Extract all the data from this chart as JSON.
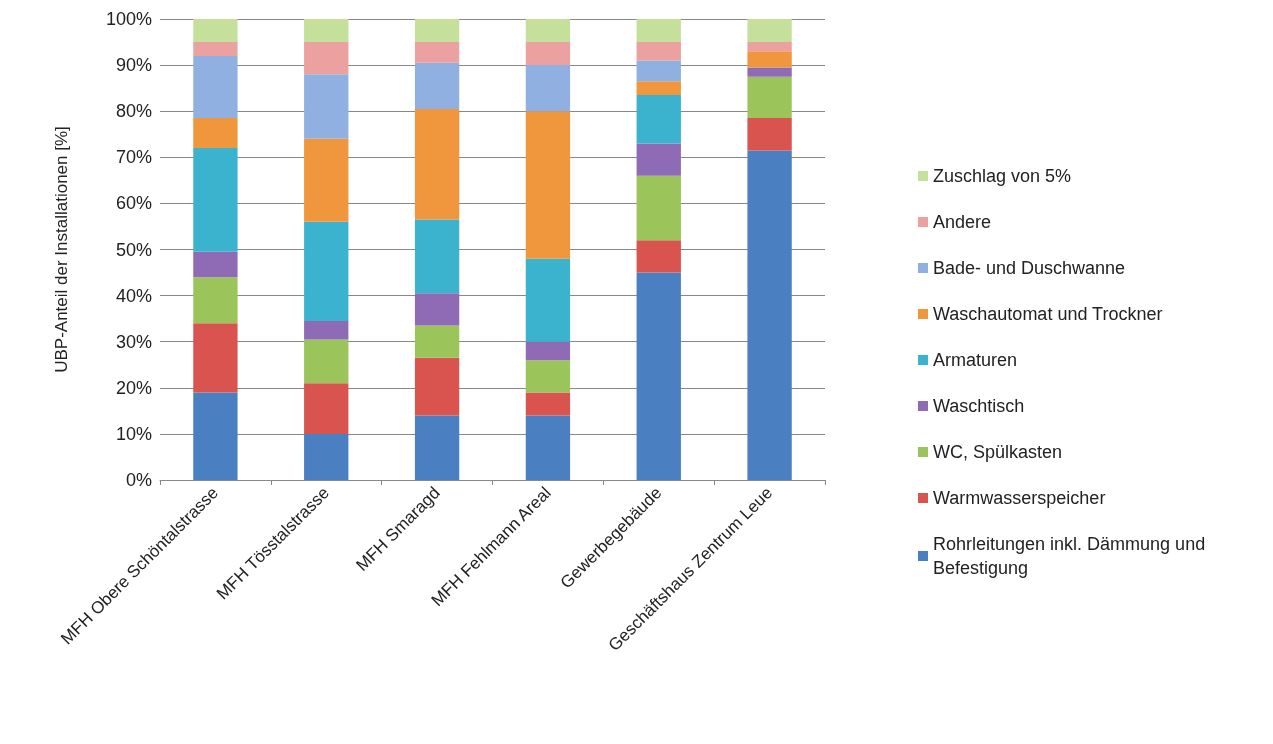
{
  "chart_data": {
    "type": "bar",
    "stacked": true,
    "ylabel": "UBP-Anteil der Installationen [%]",
    "categories": [
      "MFH Obere Schöntalstrasse",
      "MFH Tösstalstrasse",
      "MFH Smaragd",
      "MFH Fehlmann Areal",
      "Gewerbegebäude",
      "Geschäftshaus Zentrum Leue"
    ],
    "series": [
      {
        "name": "Rohrleitungen inkl. Dämmung und Befestigung",
        "color": "#4a7fc1",
        "values": [
          19,
          10,
          14,
          14,
          45,
          71.5
        ]
      },
      {
        "name": "Warmwasserspeicher",
        "color": "#d9534f",
        "values": [
          15,
          11,
          12.5,
          5,
          7,
          7
        ]
      },
      {
        "name": "WC, Spülkasten",
        "color": "#9bc45a",
        "values": [
          10,
          9.5,
          7,
          7,
          14,
          9
        ]
      },
      {
        "name": "Waschtisch",
        "color": "#8e6bb4",
        "values": [
          5.5,
          4,
          7,
          4,
          7,
          2
        ]
      },
      {
        "name": "Armaturen",
        "color": "#3bb3cf",
        "values": [
          22.5,
          21.5,
          16,
          18,
          10.5,
          0
        ]
      },
      {
        "name": "Waschautomat und Trockner",
        "color": "#f0963c",
        "values": [
          6.5,
          18,
          24,
          32,
          3,
          3.5
        ]
      },
      {
        "name": "Bade- und Duschwanne",
        "color": "#8fb0e0",
        "values": [
          13.5,
          14,
          10,
          10,
          4.5,
          0
        ]
      },
      {
        "name": "Andere",
        "color": "#eba1a0",
        "values": [
          3,
          7,
          4.5,
          5,
          4,
          2
        ]
      },
      {
        "name": "Zuschlag von 5%",
        "color": "#c4e09a",
        "values": [
          5,
          5,
          5,
          5,
          5,
          5
        ]
      }
    ],
    "ylim": [
      0,
      100
    ],
    "yticks": [
      {
        "value": 0,
        "label": "0%"
      },
      {
        "value": 10,
        "label": "10%"
      },
      {
        "value": 20,
        "label": "20%"
      },
      {
        "value": 30,
        "label": "30%"
      },
      {
        "value": 40,
        "label": "40%"
      },
      {
        "value": 50,
        "label": "50%"
      },
      {
        "value": 60,
        "label": "60%"
      },
      {
        "value": 70,
        "label": "70%"
      },
      {
        "value": 80,
        "label": "80%"
      },
      {
        "value": 90,
        "label": "90%"
      },
      {
        "value": 100,
        "label": "100%"
      }
    ],
    "grid": "y",
    "legend": "right"
  }
}
